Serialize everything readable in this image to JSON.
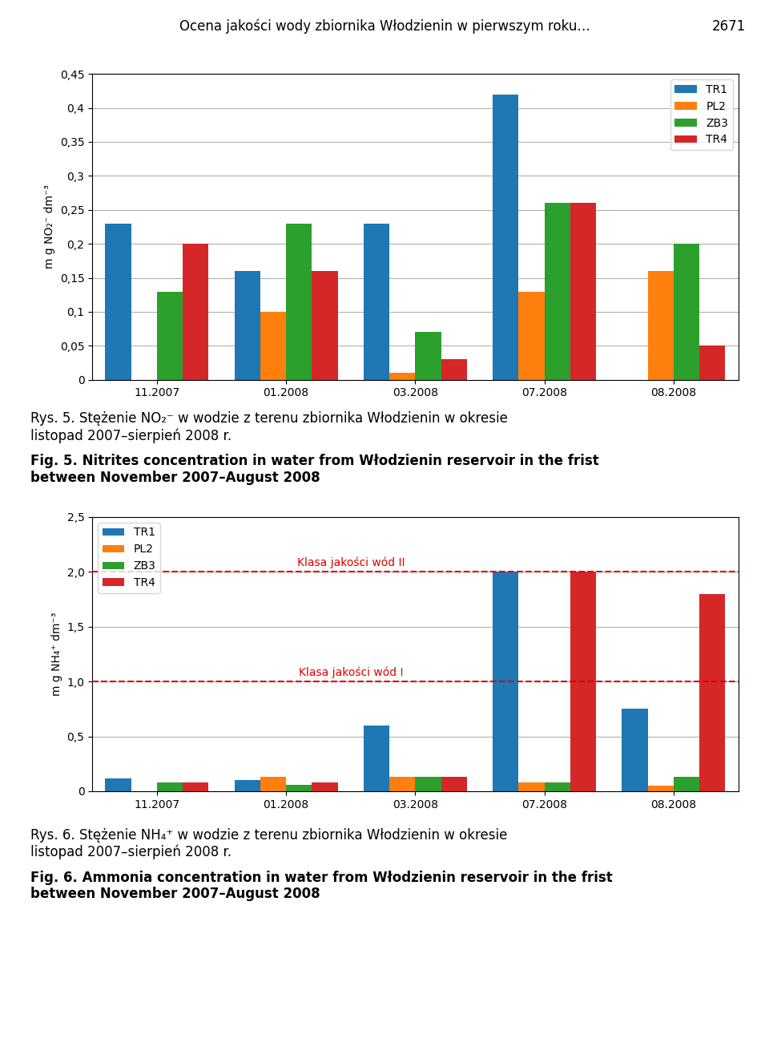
{
  "title": "Ocena jakości wody zbiornika Włodzienin w pierwszym roku…",
  "annotations": [
    {
      "text": "2671"
    }
  ],
  "chart_data": [
    {
      "type": "bar",
      "title": "Rys. 5. Stężenie NO₂⁻ w wodzie z terenu zbiornika Włodzienin w okresie\nlistopad 2007–sierpień 2008 r.",
      "subtitle": "Fig. 5. Nitrites concentration in water from Włodzienin reservoir in the frist\nbetween November 2007–August 2008",
      "y_label": "m g NO₂⁻ dm⁻³",
      "categories": [
        "11.2007",
        "01.2008",
        "03.2008",
        "07.2008",
        "08.2008"
      ],
      "series": [
        {
          "name": "TR1",
          "values": [
            0.23,
            0.16,
            0.23,
            0.42,
            0.0
          ]
        },
        {
          "name": "PL2",
          "values": [
            0.0,
            0.1,
            0.01,
            0.13,
            0.16
          ]
        },
        {
          "name": "ZB3",
          "values": [
            0.13,
            0.23,
            0.07,
            0.26,
            0.2
          ]
        },
        {
          "name": "TR4",
          "values": [
            0.2,
            0.16,
            0.03,
            0.26,
            0.05
          ]
        }
      ],
      "ylim": [
        0,
        0.45
      ],
      "yticks": [
        0,
        {
          "value": 0.05,
          "label": "0,05"
        },
        {
          "value": 0.1,
          "label": "0,1"
        },
        {
          "value": 0.15,
          "label": "0,15"
        },
        {
          "value": 0.2,
          "label": "0,2"
        },
        {
          "value": 0.25,
          "label": "0,25"
        },
        {
          "value": 0.3,
          "label": "0,3"
        },
        {
          "value": 0.35,
          "label": "0,35"
        },
        {
          "value": 0.4,
          "label": "0,4"
        },
        {
          "value": 0.45,
          "label": "0,45"
        }
      ],
      "grid": true,
      "legend": "upper right"
    },
    {
      "type": "bar",
      "title": "Rys. 6. Stężenie NH₄⁺ w wodzie z terenu zbiornika Włodzienin w okresie\nlistopad 2007–sierpień 2008 r.",
      "subtitle": "Fig. 6. Ammonia concentration in water from Włodzienin reservoir in the frist\nbetween November 2007–August 2008",
      "y_label": "m g NH₄⁺ dm⁻³",
      "categories": [
        "11.2007",
        "01.2008",
        "03.2008",
        "07.2008",
        "08.2008"
      ],
      "series": [
        {
          "name": "TR1",
          "values": [
            0.12,
            0.1,
            0.6,
            2.0,
            0.75
          ]
        },
        {
          "name": "PL2",
          "values": [
            0.0,
            0.13,
            0.13,
            0.08,
            0.05
          ]
        },
        {
          "name": "ZB3",
          "values": [
            0.08,
            0.06,
            0.13,
            0.08,
            0.13
          ]
        },
        {
          "name": "TR4",
          "values": [
            0.08,
            0.08,
            0.13,
            2.0,
            1.8
          ]
        }
      ],
      "ylim": [
        0,
        2.5
      ],
      "yticks": [
        0,
        {
          "value": 0.5,
          "label": "0,5"
        },
        {
          "value": 1.0,
          "label": "1,0"
        },
        {
          "value": 1.5,
          "label": "1,5"
        },
        {
          "value": 2.0,
          "label": "2,0"
        },
        {
          "value": 2.5,
          "label": "2,5"
        }
      ],
      "grid": true,
      "legend": "upper left",
      "annotations": [
        {
          "text": "Klasa jakości wód I",
          "y": 1.0,
          "color": "#DD0000",
          "line_style": "dashed"
        },
        {
          "text": "Klasa jakości wód II",
          "y": 2.0,
          "color": "#DD0000",
          "line_style": "dashed"
        }
      ]
    }
  ]
}
